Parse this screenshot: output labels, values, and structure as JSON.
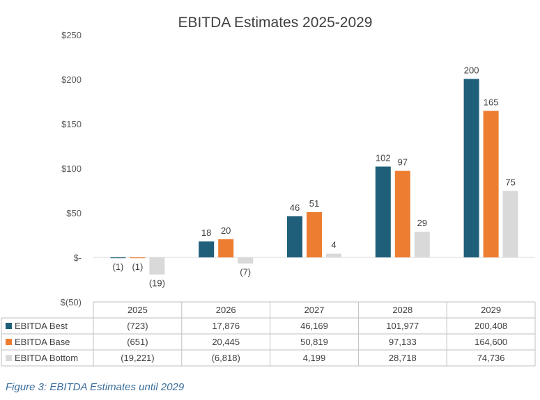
{
  "chart_data": {
    "type": "bar",
    "title": "EBITDA Estimates 2025-2029",
    "categories": [
      "2025",
      "2026",
      "2027",
      "2028",
      "2029"
    ],
    "yticks": [
      "$250",
      "$200",
      "$150",
      "$100",
      "$50",
      "$-",
      "$(50)"
    ],
    "ylim": [
      -50,
      250
    ],
    "grid": false,
    "legend": "data-table-below",
    "series": [
      {
        "name": "EBITDA Best",
        "color": "#1f5f7a",
        "values": [
          -0.723,
          17.876,
          46.169,
          101.977,
          200.408
        ],
        "labels": [
          "(1)",
          "18",
          "46",
          "102",
          "200"
        ],
        "table": [
          "(723)",
          "17,876",
          "46,169",
          "101,977",
          "200,408"
        ]
      },
      {
        "name": "EBITDA Base",
        "color": "#ed7d31",
        "values": [
          -0.651,
          20.445,
          50.819,
          97.133,
          164.6
        ],
        "labels": [
          "(1)",
          "20",
          "51",
          "97",
          "165"
        ],
        "table": [
          "(651)",
          "20,445",
          "50,819",
          "97,133",
          "164,600"
        ]
      },
      {
        "name": "EBITDA Bottom",
        "color": "#d9d9d9",
        "values": [
          -19.221,
          -6.818,
          4.199,
          28.718,
          74.736
        ],
        "labels": [
          "(19)",
          "(7)",
          "4",
          "29",
          "75"
        ],
        "table": [
          "(19,221)",
          "(6,818)",
          "4,199",
          "28,718",
          "74,736"
        ]
      }
    ]
  },
  "caption": "Figure 3: EBITDA Estimates until 2029"
}
